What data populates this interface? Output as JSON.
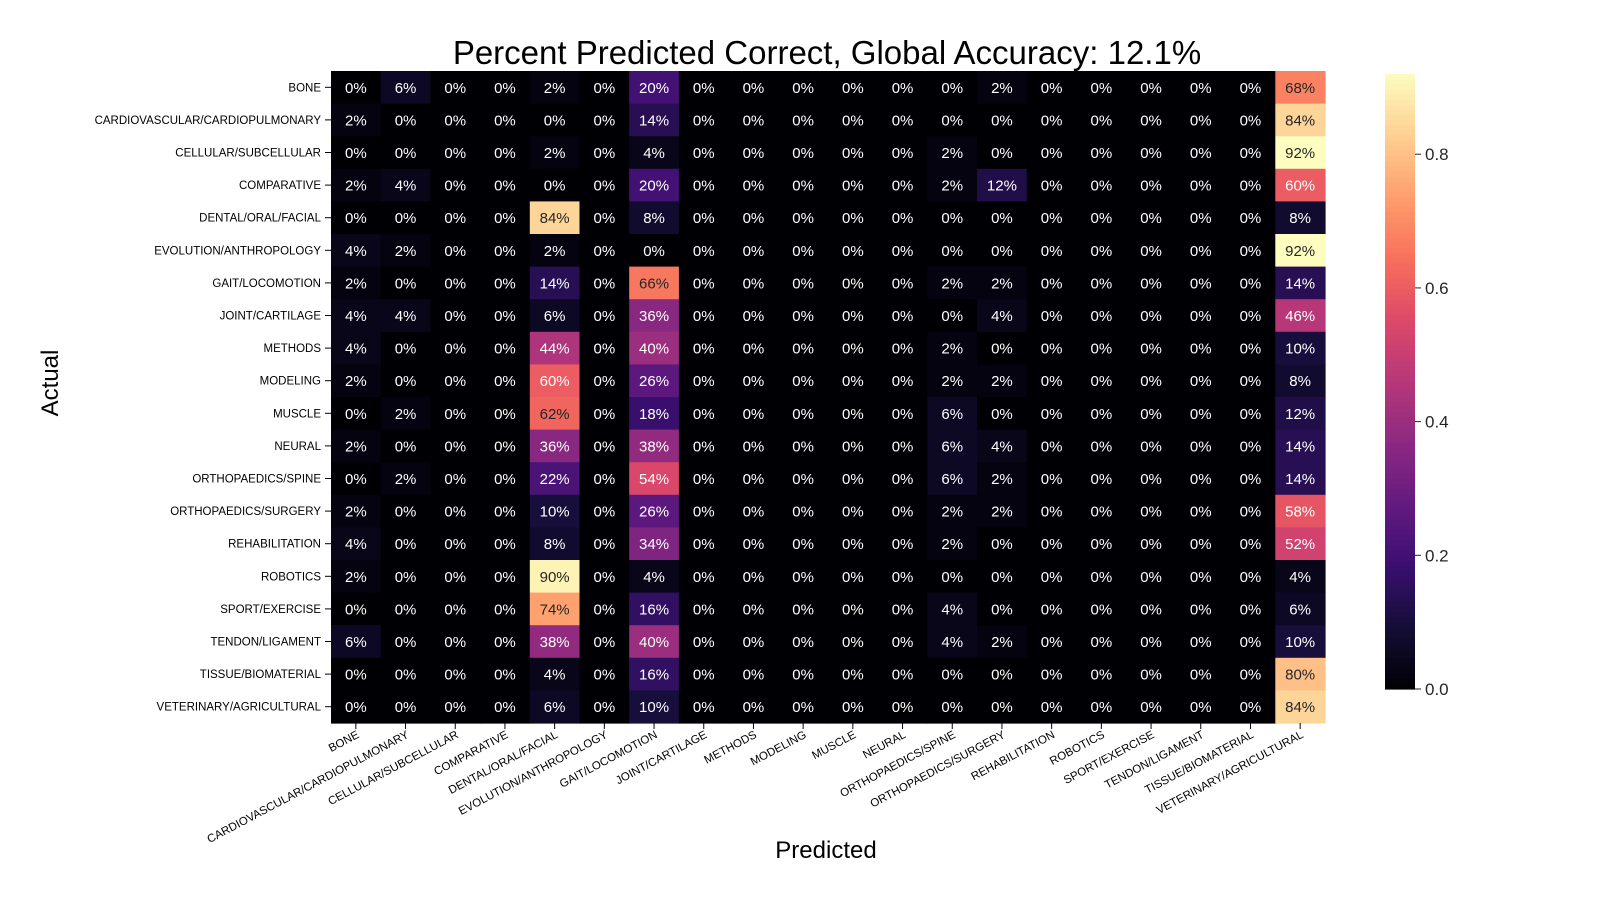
{
  "chart_data": {
    "type": "heatmap",
    "title": "Percent Predicted Correct, Global Accuracy: 12.1%",
    "xlabel": "Predicted",
    "ylabel": "Actual",
    "rows": [
      "BONE",
      "CARDIOVASCULAR/CARDIOPULMONARY",
      "CELLULAR/SUBCELLULAR",
      "COMPARATIVE",
      "DENTAL/ORAL/FACIAL",
      "EVOLUTION/ANTHROPOLOGY",
      "GAIT/LOCOMOTION",
      "JOINT/CARTILAGE",
      "METHODS",
      "MODELING",
      "MUSCLE",
      "NEURAL",
      "ORTHOPAEDICS/SPINE",
      "ORTHOPAEDICS/SURGERY",
      "REHABILITATION",
      "ROBOTICS",
      "SPORT/EXERCISE",
      "TENDON/LIGAMENT",
      "TISSUE/BIOMATERIAL",
      "VETERINARY/AGRICULTURAL"
    ],
    "columns": [
      "BONE",
      "CARDIOVASCULAR/CARDIOPULMONARY",
      "CELLULAR/SUBCELLULAR",
      "COMPARATIVE",
      "DENTAL/ORAL/FACIAL",
      "EVOLUTION/ANTHROPOLOGY",
      "GAIT/LOCOMOTION",
      "JOINT/CARTILAGE",
      "METHODS",
      "MODELING",
      "MUSCLE",
      "NEURAL",
      "ORTHOPAEDICS/SPINE",
      "ORTHOPAEDICS/SURGERY",
      "REHABILITATION",
      "ROBOTICS",
      "SPORT/EXERCISE",
      "TENDON/LIGAMENT",
      "TISSUE/BIOMATERIAL",
      "VETERINARY/AGRICULTURAL"
    ],
    "values": [
      [
        0,
        0.06,
        0,
        0,
        0.02,
        0,
        0.2,
        0,
        0,
        0,
        0,
        0,
        0,
        0.02,
        0,
        0,
        0,
        0,
        0,
        0.68
      ],
      [
        0.02,
        0,
        0,
        0,
        0,
        0,
        0.14,
        0,
        0,
        0,
        0,
        0,
        0,
        0,
        0,
        0,
        0,
        0,
        0,
        0.84
      ],
      [
        0,
        0,
        0,
        0,
        0.02,
        0,
        0.04,
        0,
        0,
        0,
        0,
        0,
        0.02,
        0,
        0,
        0,
        0,
        0,
        0,
        0.92
      ],
      [
        0.02,
        0.04,
        0,
        0,
        0,
        0,
        0.2,
        0,
        0,
        0,
        0,
        0,
        0.02,
        0.12,
        0,
        0,
        0,
        0,
        0,
        0.6
      ],
      [
        0,
        0,
        0,
        0,
        0.84,
        0,
        0.08,
        0,
        0,
        0,
        0,
        0,
        0,
        0,
        0,
        0,
        0,
        0,
        0,
        0.08
      ],
      [
        0.04,
        0.02,
        0,
        0,
        0.02,
        0,
        0,
        0,
        0,
        0,
        0,
        0,
        0,
        0,
        0,
        0,
        0,
        0,
        0,
        0.92
      ],
      [
        0.02,
        0,
        0,
        0,
        0.14,
        0,
        0.66,
        0,
        0,
        0,
        0,
        0,
        0.02,
        0.02,
        0,
        0,
        0,
        0,
        0,
        0.14
      ],
      [
        0.04,
        0.04,
        0,
        0,
        0.06,
        0,
        0.36,
        0,
        0,
        0,
        0,
        0,
        0,
        0.04,
        0,
        0,
        0,
        0,
        0,
        0.46
      ],
      [
        0.04,
        0,
        0,
        0,
        0.44,
        0,
        0.4,
        0,
        0,
        0,
        0,
        0,
        0.02,
        0,
        0,
        0,
        0,
        0,
        0,
        0.1
      ],
      [
        0.02,
        0,
        0,
        0,
        0.6,
        0,
        0.26,
        0,
        0,
        0,
        0,
        0,
        0.02,
        0.02,
        0,
        0,
        0,
        0,
        0,
        0.08
      ],
      [
        0,
        0.02,
        0,
        0,
        0.62,
        0,
        0.18,
        0,
        0,
        0,
        0,
        0,
        0.06,
        0,
        0,
        0,
        0,
        0,
        0,
        0.12
      ],
      [
        0.02,
        0,
        0,
        0,
        0.36,
        0,
        0.38,
        0,
        0,
        0,
        0,
        0,
        0.06,
        0.04,
        0,
        0,
        0,
        0,
        0,
        0.14
      ],
      [
        0,
        0.02,
        0,
        0,
        0.22,
        0,
        0.54,
        0,
        0,
        0,
        0,
        0,
        0.06,
        0.02,
        0,
        0,
        0,
        0,
        0,
        0.14
      ],
      [
        0.02,
        0,
        0,
        0,
        0.1,
        0,
        0.26,
        0,
        0,
        0,
        0,
        0,
        0.02,
        0.02,
        0,
        0,
        0,
        0,
        0,
        0.58
      ],
      [
        0.04,
        0,
        0,
        0,
        0.08,
        0,
        0.34,
        0,
        0,
        0,
        0,
        0,
        0.02,
        0,
        0,
        0,
        0,
        0,
        0,
        0.52
      ],
      [
        0.02,
        0,
        0,
        0,
        0.9,
        0,
        0.04,
        0,
        0,
        0,
        0,
        0,
        0,
        0,
        0,
        0,
        0,
        0,
        0,
        0.04
      ],
      [
        0,
        0,
        0,
        0,
        0.74,
        0,
        0.16,
        0,
        0,
        0,
        0,
        0,
        0.04,
        0,
        0,
        0,
        0,
        0,
        0,
        0.06
      ],
      [
        0.06,
        0,
        0,
        0,
        0.38,
        0,
        0.4,
        0,
        0,
        0,
        0,
        0,
        0.04,
        0.02,
        0,
        0,
        0,
        0,
        0,
        0.1
      ],
      [
        0,
        0,
        0,
        0,
        0.04,
        0,
        0.16,
        0,
        0,
        0,
        0,
        0,
        0,
        0,
        0,
        0,
        0,
        0,
        0,
        0.8
      ],
      [
        0,
        0,
        0,
        0,
        0.06,
        0,
        0.1,
        0,
        0,
        0,
        0,
        0,
        0,
        0,
        0,
        0,
        0,
        0,
        0,
        0.84
      ]
    ],
    "value_format": "percent",
    "colormap": "magma",
    "colorbar": {
      "range": [
        0,
        0.92
      ],
      "ticks": [
        0.0,
        0.2,
        0.4,
        0.6,
        0.8
      ]
    },
    "grid": false,
    "legend": "colorbar-right"
  }
}
